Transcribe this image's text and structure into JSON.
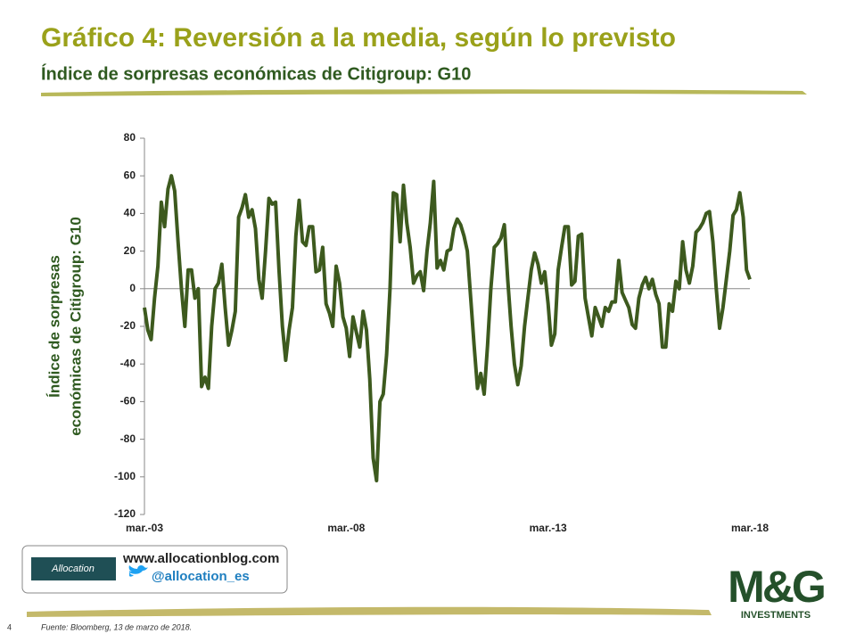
{
  "header": {
    "title": "Gráfico 4: Reversión a la media, según lo previsto",
    "subtitle": "Índice de sorpresas económicas de Citigroup: G10"
  },
  "chart_data": {
    "type": "line",
    "ylabel": [
      "Índice de sorpresas",
      "económicas de Citigroup: G10"
    ],
    "ylim": [
      -120,
      80
    ],
    "yticks": [
      -120,
      -100,
      -80,
      -60,
      -40,
      -20,
      0,
      20,
      40,
      60,
      80
    ],
    "color": "#3d5a1e",
    "categories": [
      "mar.-03",
      null,
      null,
      null,
      null,
      null,
      null,
      null,
      null,
      null,
      null,
      null,
      null,
      null,
      null,
      null,
      null,
      null,
      null,
      null,
      null,
      null,
      null,
      null,
      null,
      null,
      null,
      null,
      null,
      null,
      null,
      null,
      null,
      null,
      null,
      null,
      null,
      null,
      null,
      null,
      null,
      null,
      null,
      null,
      null,
      null,
      null,
      null,
      null,
      null,
      null,
      null,
      null,
      null,
      null,
      null,
      null,
      null,
      null,
      null,
      "mar.-08",
      null,
      null,
      null,
      null,
      null,
      null,
      null,
      null,
      null,
      null,
      null,
      null,
      null,
      null,
      null,
      null,
      null,
      null,
      null,
      null,
      null,
      null,
      null,
      null,
      null,
      null,
      null,
      null,
      null,
      null,
      null,
      null,
      null,
      null,
      null,
      null,
      null,
      null,
      null,
      null,
      null,
      null,
      null,
      null,
      null,
      null,
      null,
      null,
      null,
      null,
      null,
      null,
      null,
      null,
      null,
      null,
      null,
      null,
      null,
      "mar.-13",
      null,
      null,
      null,
      null,
      null,
      null,
      null,
      null,
      null,
      null,
      null,
      null,
      null,
      null,
      null,
      null,
      null,
      null,
      null,
      null,
      null,
      null,
      null,
      null,
      null,
      null,
      null,
      null,
      null,
      null,
      null,
      null,
      null,
      null,
      null,
      null,
      null,
      null,
      null,
      null,
      null,
      null,
      null,
      null,
      null,
      null,
      null,
      null,
      null,
      null,
      null,
      null,
      null,
      null,
      null,
      null,
      null,
      null,
      null,
      "mar.-18"
    ],
    "values": [
      -10,
      -22,
      -27,
      -5,
      12,
      46,
      33,
      53,
      60,
      52,
      25,
      0,
      -20,
      10,
      10,
      -5,
      0,
      -52,
      -47,
      -53,
      -20,
      0,
      3,
      13,
      -10,
      -30,
      -22,
      -12,
      38,
      43,
      50,
      38,
      42,
      32,
      5,
      -5,
      20,
      48,
      45,
      46,
      10,
      -20,
      -38,
      -22,
      -10,
      28,
      47,
      25,
      23,
      33,
      33,
      9,
      10,
      22,
      -8,
      -13,
      -20,
      12,
      3,
      -15,
      -21,
      -36,
      -15,
      -23,
      -31,
      -12,
      -22,
      -48,
      -90,
      -102,
      -60,
      -56,
      -35,
      0,
      51,
      50,
      25,
      55,
      35,
      22,
      3,
      7,
      9,
      -1,
      20,
      35,
      57,
      11,
      15,
      10,
      20,
      21,
      32,
      37,
      34,
      28,
      20,
      -5,
      -30,
      -53,
      -45,
      -56,
      -30,
      0,
      22,
      24,
      27,
      34,
      5,
      -20,
      -40,
      -51,
      -41,
      -20,
      -5,
      10,
      19,
      13,
      3,
      9,
      -8,
      -30,
      -24,
      10,
      22,
      33,
      33,
      2,
      4,
      28,
      29,
      -5,
      -15,
      -25,
      -10,
      -15,
      -20,
      -10,
      -12,
      -7,
      -7,
      15,
      -2,
      -6,
      -10,
      -19,
      -21,
      -5,
      2,
      6,
      0,
      5,
      -3,
      -8,
      -31,
      -31,
      -8,
      -12,
      4,
      0,
      25,
      10,
      3,
      12,
      30,
      32,
      35,
      40,
      41,
      25,
      0,
      -21,
      -10,
      5,
      20,
      39,
      42,
      51,
      38,
      10,
      5
    ]
  },
  "blog": {
    "logo": "Allocation",
    "url": "www.allocationblog.com",
    "twitter": "@allocation_es"
  },
  "brand": {
    "name": "M&G",
    "tagline": "INVESTMENTS"
  },
  "footer": {
    "page": "4",
    "source": "Fuente: Bloomberg, 13 de marzo de 2018."
  }
}
